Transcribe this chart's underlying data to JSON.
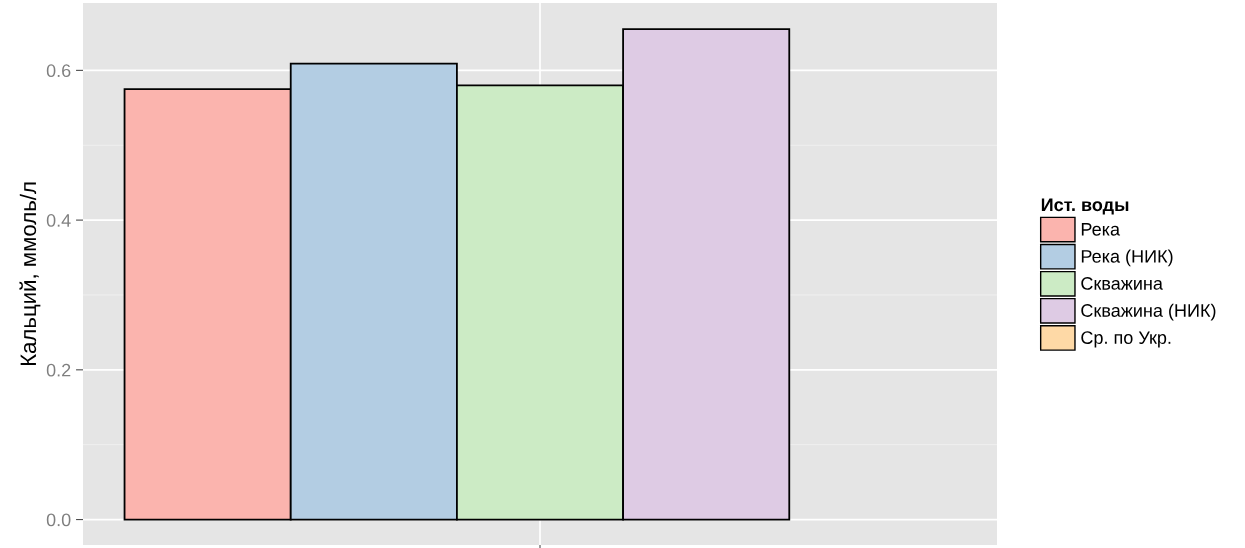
{
  "chart_data": {
    "type": "bar",
    "ylabel": "Кальций, ммоль/л",
    "legend_title": "Ист. воды",
    "categories": [
      null
    ],
    "series": [
      {
        "name": "Река",
        "color": "#fbb4ae",
        "values": [
          0.575
        ]
      },
      {
        "name": "Река (НИК)",
        "color": "#b3cde3",
        "values": [
          0.609
        ]
      },
      {
        "name": "Скважина",
        "color": "#ccebc5",
        "values": [
          0.58
        ]
      },
      {
        "name": "Скважина (НИК)",
        "color": "#decbe4",
        "values": [
          0.655
        ]
      },
      {
        "name": "Ср. по Укр.",
        "color": "#fed9a6",
        "values": [
          null
        ]
      }
    ],
    "ylim": [
      -0.034,
      0.69
    ],
    "yticks": [
      {
        "value": 0,
        "label": "0.0"
      },
      0.2,
      0.4,
      0.6
    ],
    "grid": true,
    "legend": "right"
  }
}
